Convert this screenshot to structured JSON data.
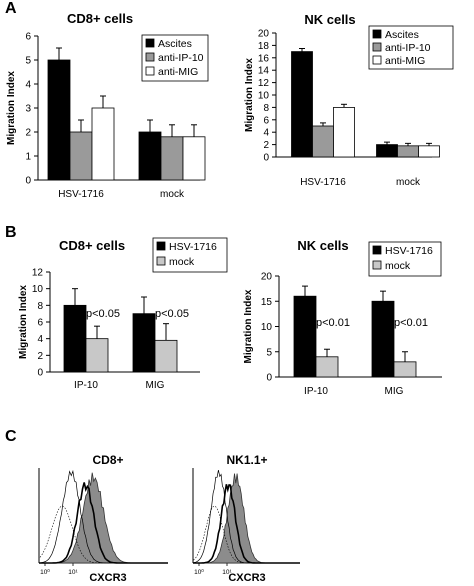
{
  "panels": {
    "a": "A",
    "b": "B",
    "c": "C"
  },
  "colors": {
    "black_bar": "#000000",
    "gray_bar": "#9a9a9a",
    "light_gray_bar": "#c8c8c8",
    "white_bar": "#ffffff",
    "histogram_fill": "#8c8c8c"
  },
  "chart_data": [
    {
      "id": "a-cd8",
      "panel": "A",
      "type": "bar",
      "title": "CD8+ cells",
      "ylabel": "Migration Index",
      "xlabel": "",
      "ylim": [
        0,
        6
      ],
      "yticks": [
        0,
        1,
        2,
        3,
        4,
        5,
        6
      ],
      "categories": [
        "HSV-1716",
        "mock"
      ],
      "legend_position": "top-right",
      "series": [
        {
          "name": "Ascites",
          "color": "black",
          "values": [
            5.0,
            2.0
          ],
          "errors": [
            0.5,
            0.5
          ]
        },
        {
          "name": "anti-IP-10",
          "color": "gray",
          "values": [
            2.0,
            1.8
          ],
          "errors": [
            0.5,
            0.5
          ]
        },
        {
          "name": "anti-MIG",
          "color": "white",
          "values": [
            3.0,
            1.8
          ],
          "errors": [
            0.5,
            0.5
          ]
        }
      ]
    },
    {
      "id": "a-nk",
      "panel": "A",
      "type": "bar",
      "title": "NK cells",
      "ylabel": "Migration Index",
      "xlabel": "",
      "ylim": [
        0,
        20
      ],
      "yticks": [
        0,
        2,
        4,
        6,
        8,
        10,
        12,
        14,
        16,
        18,
        20
      ],
      "categories": [
        "HSV-1716",
        "mock"
      ],
      "legend_position": "top-right",
      "series": [
        {
          "name": "Ascites",
          "color": "black",
          "values": [
            17.0,
            2.0
          ],
          "errors": [
            0.5,
            0.4
          ]
        },
        {
          "name": "anti-IP-10",
          "color": "gray",
          "values": [
            5.0,
            1.8
          ],
          "errors": [
            0.5,
            0.4
          ]
        },
        {
          "name": "anti-MIG",
          "color": "white",
          "values": [
            8.0,
            1.8
          ],
          "errors": [
            0.5,
            0.4
          ]
        }
      ]
    },
    {
      "id": "b-cd8",
      "panel": "B",
      "type": "bar",
      "title": "CD8+ cells",
      "ylabel": "Migration Index",
      "xlabel": "",
      "ylim": [
        0,
        12
      ],
      "yticks": [
        0,
        2,
        4,
        6,
        8,
        10,
        12
      ],
      "categories": [
        "IP-10",
        "MIG"
      ],
      "legend_position": "top-right",
      "annotations": [
        "p<0.05",
        "p<0.05"
      ],
      "series": [
        {
          "name": "HSV-1716",
          "color": "black",
          "values": [
            8.0,
            7.0
          ],
          "errors": [
            2.0,
            2.0
          ]
        },
        {
          "name": "mock",
          "color": "light_gray",
          "values": [
            4.0,
            3.8
          ],
          "errors": [
            1.5,
            2.0
          ]
        }
      ]
    },
    {
      "id": "b-nk",
      "panel": "B",
      "type": "bar",
      "title": "NK cells",
      "ylabel": "Migration Index",
      "xlabel": "",
      "ylim": [
        0,
        20
      ],
      "yticks": [
        0,
        5,
        10,
        15,
        20
      ],
      "categories": [
        "IP-10",
        "MIG"
      ],
      "legend_position": "top-right",
      "annotations": [
        "p<0.01",
        "p<0.01"
      ],
      "series": [
        {
          "name": "HSV-1716",
          "color": "black",
          "values": [
            16.0,
            15.0
          ],
          "errors": [
            2.0,
            2.0
          ]
        },
        {
          "name": "mock",
          "color": "light_gray",
          "values": [
            4.0,
            3.0
          ],
          "errors": [
            1.5,
            2.0
          ]
        }
      ]
    },
    {
      "id": "c-cd8",
      "panel": "C",
      "type": "area",
      "title": "CD8+",
      "xlabel": "CXCR3",
      "xtick_labels": [
        "10⁰",
        "10¹"
      ]
    },
    {
      "id": "c-nk",
      "panel": "C",
      "type": "area",
      "title": "NK1.1+",
      "xlabel": "CXCR3",
      "xtick_labels": [
        "10⁰",
        "10¹"
      ]
    }
  ]
}
